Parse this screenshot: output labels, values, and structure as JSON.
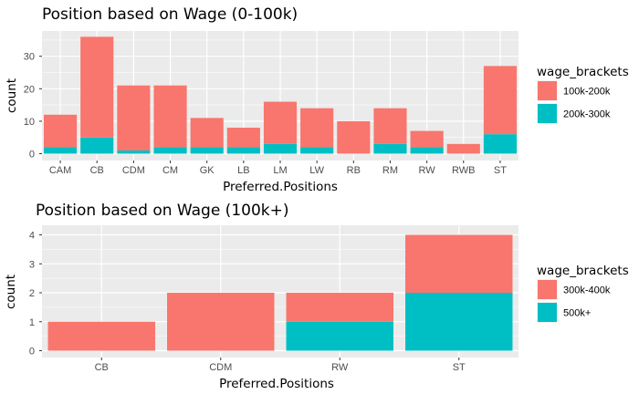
{
  "colors": {
    "salmon": "#F8766D",
    "teal": "#00BFC4",
    "panel_bg": "#EBEBEB",
    "grid": "#FFFFFF",
    "legend_key_bg": "#F2F2F2"
  },
  "chart_data": [
    {
      "type": "bar",
      "stacked": true,
      "title": "Position based on Wage (0-100k)",
      "xlabel": "Preferred.Positions",
      "ylabel": "count",
      "ylim": [
        0,
        36
      ],
      "yticks": [
        0,
        10,
        20,
        30
      ],
      "grid": true,
      "legend_title": "wage_brackets",
      "legend_position": "right",
      "categories": [
        "CAM",
        "CB",
        "CDM",
        "CM",
        "GK",
        "LB",
        "LM",
        "LW",
        "RB",
        "RM",
        "RW",
        "RWB",
        "ST"
      ],
      "series": [
        {
          "name": "100k-200k",
          "color": "#F8766D",
          "values": [
            10,
            31,
            20,
            19,
            9,
            6,
            13,
            12,
            10,
            11,
            5,
            3,
            21
          ]
        },
        {
          "name": "200k-300k",
          "color": "#00BFC4",
          "values": [
            2,
            5,
            1,
            2,
            2,
            2,
            3,
            2,
            0,
            3,
            2,
            0,
            6
          ]
        }
      ]
    },
    {
      "type": "bar",
      "stacked": true,
      "title": "Position based on Wage (100k+)",
      "xlabel": "Preferred.Positions",
      "ylabel": "count",
      "ylim": [
        0,
        4
      ],
      "yticks": [
        0,
        1,
        2,
        3,
        4
      ],
      "grid": true,
      "legend_title": "wage_brackets",
      "legend_position": "right",
      "categories": [
        "CB",
        "CDM",
        "RW",
        "ST"
      ],
      "series": [
        {
          "name": "300k-400k",
          "color": "#F8766D",
          "values": [
            1,
            2,
            1,
            2
          ]
        },
        {
          "name": "500k+",
          "color": "#00BFC4",
          "values": [
            0,
            0,
            1,
            2
          ]
        }
      ]
    }
  ]
}
